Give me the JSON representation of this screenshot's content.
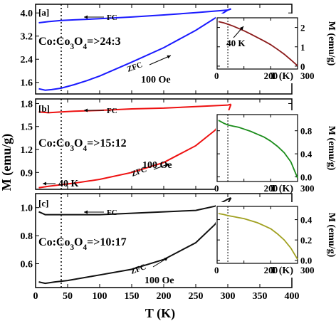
{
  "figure": {
    "ylabel": "M (emu/g)",
    "xlabel": "T (K)",
    "x_ticks": [
      0,
      50,
      100,
      150,
      200,
      250,
      300,
      350,
      400
    ],
    "xlim": [
      0,
      400
    ],
    "marker_line_T": 40
  },
  "chart_data": [
    {
      "panel": "a",
      "type": "line",
      "panel_label": "[a]",
      "sample": "Co:Co3O4=>24:3",
      "field": "100 Oe",
      "color": "#1a1aff",
      "ylim": [
        1.2,
        4.3
      ],
      "y_ticks": [
        1.6,
        2.4,
        3.2,
        4.0
      ],
      "y_tick_labels": [
        "1.6",
        "2.4",
        "3.2",
        "4.0"
      ],
      "annotations": {
        "fc": "FC",
        "zfc": "ZFC"
      },
      "series": [
        {
          "name": "FC",
          "x": [
            5,
            20,
            40,
            60,
            80,
            100,
            150,
            200,
            250,
            300,
            305
          ],
          "y": [
            3.66,
            3.7,
            3.74,
            3.76,
            3.78,
            3.8,
            3.86,
            3.93,
            4.01,
            4.1,
            4.14
          ]
        },
        {
          "name": "ZFC",
          "x": [
            5,
            15,
            25,
            40,
            60,
            80,
            100,
            150,
            200,
            250,
            300,
            305
          ],
          "y": [
            1.38,
            1.33,
            1.35,
            1.4,
            1.52,
            1.66,
            1.82,
            2.3,
            2.8,
            3.4,
            4.1,
            4.14
          ]
        }
      ],
      "inset": {
        "type": "line",
        "color": "#8b1a1a",
        "ylabel": "M (emu/g)",
        "xlabel": "T (K)",
        "xlim": [
          0,
          300
        ],
        "ylim": [
          -0.15,
          2.5
        ],
        "x_ticks": [
          0,
          100,
          200,
          300
        ],
        "y_ticks": [
          0,
          1,
          2
        ],
        "y_tick_labels": [
          "0",
          "1",
          "2"
        ],
        "annotation": "40 K",
        "x": [
          5,
          25,
          40,
          60,
          80,
          100,
          125,
          150,
          175,
          200,
          225,
          250,
          275,
          300
        ],
        "y": [
          2.3,
          2.24,
          2.17,
          2.07,
          1.95,
          1.83,
          1.66,
          1.48,
          1.3,
          1.11,
          0.87,
          0.62,
          0.33,
          0.02
        ]
      }
    },
    {
      "panel": "b",
      "type": "line",
      "panel_label": "[b]",
      "sample": "Co:Co3O4=>15:12",
      "field": "100 Oe",
      "color": "#ee1111",
      "ylim": [
        0.68,
        1.86
      ],
      "y_ticks": [
        0.9,
        1.2,
        1.5,
        1.8
      ],
      "y_tick_labels": [
        "0.9",
        "1.2",
        "1.5",
        "1.8"
      ],
      "annotations": {
        "fc": "FC",
        "zfc": "ZFC",
        "t_label": "40 K"
      },
      "series": [
        {
          "name": "FC",
          "x": [
            5,
            20,
            40,
            60,
            100,
            150,
            200,
            250,
            300,
            305
          ],
          "y": [
            1.69,
            1.68,
            1.69,
            1.7,
            1.71,
            1.73,
            1.74,
            1.76,
            1.78,
            1.79
          ]
        },
        {
          "name": "ZFC",
          "x": [
            5,
            20,
            40,
            60,
            100,
            150,
            200,
            250,
            280,
            300,
            305
          ],
          "y": [
            0.7,
            0.72,
            0.74,
            0.76,
            0.81,
            0.9,
            1.03,
            1.25,
            1.45,
            1.68,
            1.79
          ]
        }
      ],
      "inset": {
        "type": "line",
        "color": "#1a8c1a",
        "ylabel": "M (emu/g)",
        "xlabel": "T (K)",
        "xlim": [
          0,
          300
        ],
        "ylim": [
          -0.08,
          1.08
        ],
        "x_ticks": [
          0,
          100,
          200,
          300
        ],
        "y_ticks": [
          0.0,
          0.4,
          0.8
        ],
        "y_tick_labels": [
          "0.0",
          "0.4",
          "0.8"
        ],
        "x": [
          5,
          25,
          40,
          60,
          80,
          100,
          125,
          150,
          175,
          200,
          225,
          250,
          275,
          300
        ],
        "y": [
          0.98,
          0.93,
          0.9,
          0.88,
          0.86,
          0.83,
          0.79,
          0.74,
          0.69,
          0.62,
          0.53,
          0.42,
          0.26,
          -0.02
        ]
      }
    },
    {
      "panel": "c",
      "type": "line",
      "panel_label": "[c]",
      "sample": "Co:Co3O4=>10:17",
      "field": "100 Oe",
      "color": "#111111",
      "ylim": [
        0.43,
        1.1
      ],
      "y_ticks": [
        0.6,
        0.8,
        1.0
      ],
      "y_tick_labels": [
        "0.6",
        "0.8",
        "1.0"
      ],
      "annotations": {
        "fc": "FC",
        "zfc": "ZFC"
      },
      "series": [
        {
          "name": "FC",
          "x": [
            5,
            15,
            30,
            50,
            100,
            150,
            200,
            250,
            280,
            300,
            305
          ],
          "y": [
            0.97,
            0.95,
            0.95,
            0.95,
            0.95,
            0.96,
            0.97,
            0.98,
            1.01,
            1.06,
            1.07
          ]
        },
        {
          "name": "ZFC",
          "x": [
            5,
            15,
            30,
            50,
            100,
            150,
            200,
            250,
            280,
            300,
            305
          ],
          "y": [
            0.47,
            0.46,
            0.47,
            0.48,
            0.52,
            0.56,
            0.63,
            0.75,
            0.88,
            1.03,
            1.07
          ]
        }
      ],
      "inset": {
        "type": "line",
        "color": "#a0a020",
        "ylabel": "M (emu/g)",
        "xlabel": "T (K)",
        "xlim": [
          0,
          300
        ],
        "ylim": [
          -0.03,
          0.53
        ],
        "x_ticks": [
          0,
          100,
          200,
          300
        ],
        "y_ticks": [
          0.0,
          0.2,
          0.4
        ],
        "y_tick_labels": [
          "0.0",
          "0.2",
          "0.4"
        ],
        "x": [
          5,
          25,
          40,
          60,
          80,
          100,
          125,
          150,
          175,
          200,
          225,
          250,
          275,
          300
        ],
        "y": [
          0.46,
          0.45,
          0.44,
          0.43,
          0.42,
          0.41,
          0.39,
          0.37,
          0.34,
          0.31,
          0.26,
          0.2,
          0.12,
          0.01
        ]
      }
    }
  ]
}
